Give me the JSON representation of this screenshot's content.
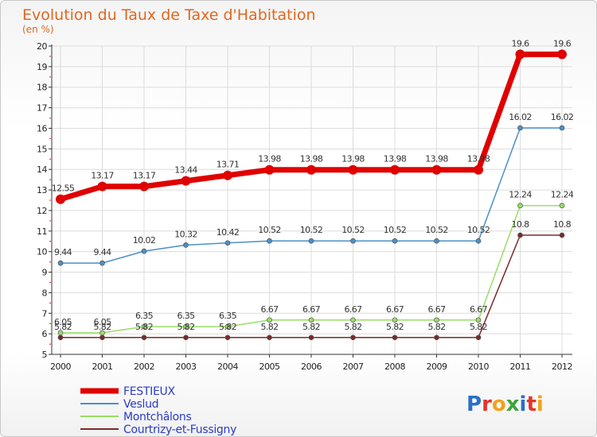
{
  "chart_data": {
    "type": "line",
    "title": "Evolution du Taux de Taxe d'Habitation",
    "subtitle": "(en %)",
    "x": [
      "2000",
      "2001",
      "2002",
      "2003",
      "2004",
      "2005",
      "2006",
      "2007",
      "2008",
      "2009",
      "2010",
      "2011",
      "2012"
    ],
    "ylim": [
      5,
      20
    ],
    "yticks": [
      5,
      6,
      7,
      8,
      9,
      10,
      11,
      12,
      13,
      14,
      15,
      16,
      17,
      18,
      19,
      20
    ],
    "grid": true,
    "legend_position": "bottom-left",
    "series": [
      {
        "name": "FESTIEUX",
        "color": "#e00000",
        "values": [
          12.55,
          13.17,
          13.17,
          13.44,
          13.71,
          13.98,
          13.98,
          13.98,
          13.98,
          13.98,
          13.98,
          19.6,
          19.6
        ],
        "labels": [
          "12.55",
          "13.17",
          "13.17",
          "13.44",
          "13.71",
          "13.98",
          "13.98",
          "13.98",
          "13.98",
          "13.98",
          "13.98",
          "19.6",
          "19.6"
        ]
      },
      {
        "name": "Veslud",
        "color": "#4a90c8",
        "values": [
          9.44,
          9.44,
          10.02,
          10.32,
          10.42,
          10.52,
          10.52,
          10.52,
          10.52,
          10.52,
          10.52,
          16.02,
          16.02
        ],
        "labels": [
          "9.44",
          "9.44",
          "10.02",
          "10.32",
          "10.42",
          "10.52",
          "10.52",
          "10.52",
          "10.52",
          "10.52",
          "10.52",
          "16.02",
          "16.02"
        ]
      },
      {
        "name": "Montchâlons",
        "color": "#99dd66",
        "values": [
          6.05,
          6.05,
          6.35,
          6.35,
          6.35,
          6.67,
          6.67,
          6.67,
          6.67,
          6.67,
          6.67,
          12.24,
          12.24
        ],
        "labels": [
          "6.05",
          "6.05",
          "6.35",
          "6.35",
          "6.35",
          "6.67",
          "6.67",
          "6.67",
          "6.67",
          "6.67",
          "6.67",
          "12.24",
          "12.24"
        ]
      },
      {
        "name": "Courtrizy-et-Fussigny",
        "color": "#7a2a2a",
        "values": [
          5.82,
          5.82,
          5.82,
          5.82,
          5.82,
          5.82,
          5.82,
          5.82,
          5.82,
          5.82,
          5.82,
          10.8,
          10.8
        ],
        "labels": [
          "5.82",
          "5.82",
          "5.82",
          "5.82",
          "5.82",
          "5.82",
          "5.82",
          "5.82",
          "5.82",
          "5.82",
          "5.82",
          "10.8",
          "10.8"
        ]
      }
    ]
  },
  "brand": {
    "logo_text": "Proxiti"
  }
}
